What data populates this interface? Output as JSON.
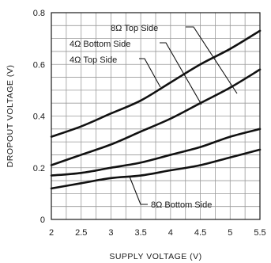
{
  "chart_data": {
    "type": "line",
    "xlabel": "SUPPLY VOLTAGE (V)",
    "ylabel": "DROPOUT VOLTAGE (V)",
    "xlim": [
      2,
      5.5
    ],
    "ylim": [
      0,
      0.8
    ],
    "x_ticks": [
      "2",
      "2.5",
      "3",
      "3.5",
      "4",
      "4.5",
      "5",
      "5.5"
    ],
    "y_ticks": [
      "0",
      "0.2",
      "0.4",
      "0.6",
      "0.8"
    ],
    "grid": true,
    "series": [
      {
        "name": "8Ω Top Side",
        "x": [
          2,
          2.5,
          3,
          3.5,
          4,
          4.5,
          5,
          5.5
        ],
        "y": [
          0.32,
          0.36,
          0.41,
          0.46,
          0.53,
          0.6,
          0.66,
          0.73
        ]
      },
      {
        "name": "4Ω Bottom Side",
        "x": [
          2,
          2.5,
          3,
          3.5,
          4,
          4.5,
          5,
          5.5
        ],
        "y": [
          0.21,
          0.25,
          0.29,
          0.34,
          0.39,
          0.45,
          0.51,
          0.58
        ]
      },
      {
        "name": "4Ω Top Side",
        "x": [
          2,
          2.5,
          3,
          3.5,
          4,
          4.5,
          5,
          5.5
        ],
        "y": [
          0.17,
          0.18,
          0.2,
          0.22,
          0.25,
          0.28,
          0.32,
          0.35
        ]
      },
      {
        "name": "8Ω Bottom Side",
        "x": [
          2,
          2.5,
          3,
          3.5,
          4,
          4.5,
          5,
          5.5
        ],
        "y": [
          0.12,
          0.14,
          0.16,
          0.17,
          0.19,
          0.21,
          0.24,
          0.27
        ]
      }
    ]
  }
}
